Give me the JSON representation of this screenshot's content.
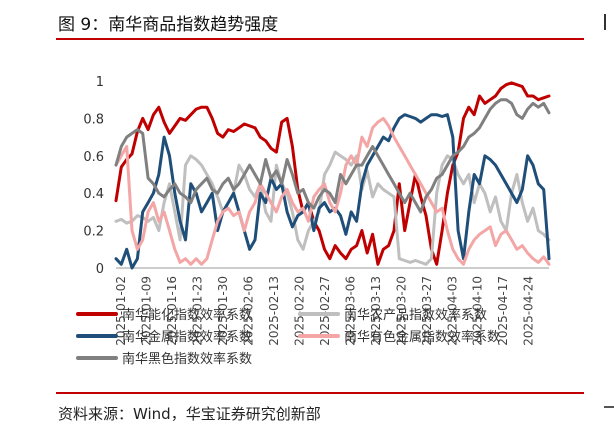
{
  "header": {
    "title": "图 9：南华商品指数趋势强度"
  },
  "footer": {
    "source": "资料来源：Wind，华宝证券研究创新部"
  },
  "chart_data": {
    "type": "line",
    "title": "图 9：南华商品指数趋势强度",
    "ylim": [
      0,
      1
    ],
    "yticks": [
      "0",
      "0.2",
      "0.4",
      "0.6",
      "0.8",
      "1"
    ],
    "grid": false,
    "legend_position": "bottom",
    "x_tick_labels": [
      "2025-01-02",
      "2025-01-09",
      "2025-01-16",
      "2025-01-23",
      "2025-01-30",
      "2025-02-06",
      "2025-02-13",
      "2025-02-20",
      "2025-02-27",
      "2025-03-06",
      "2025-03-13",
      "2025-03-20",
      "2025-03-27",
      "2025-04-03",
      "2025-04-10",
      "2025-04-17",
      "2025-04-24"
    ],
    "series": [
      {
        "name": "南华能化指数效率系数",
        "color": "#c00000",
        "values": [
          0.36,
          0.54,
          0.58,
          0.61,
          0.73,
          0.8,
          0.74,
          0.82,
          0.86,
          0.78,
          0.72,
          0.76,
          0.8,
          0.79,
          0.82,
          0.85,
          0.86,
          0.86,
          0.8,
          0.72,
          0.7,
          0.74,
          0.73,
          0.75,
          0.77,
          0.76,
          0.75,
          0.7,
          0.68,
          0.64,
          0.62,
          0.78,
          0.8,
          0.65,
          0.42,
          0.3,
          0.35,
          0.25,
          0.2,
          0.1,
          0.05,
          0.12,
          0.08,
          0.05,
          0.1,
          0.12,
          0.2,
          0.08,
          0.18,
          0.02,
          0.1,
          0.12,
          0.2,
          0.45,
          0.2,
          0.35,
          0.5,
          0.38,
          0.28,
          0.1,
          0.02,
          0.2,
          0.4,
          0.55,
          0.62,
          0.8,
          0.86,
          0.82,
          0.92,
          0.88,
          0.9,
          0.92,
          0.96,
          0.98,
          0.99,
          0.98,
          0.97,
          0.92,
          0.92,
          0.9,
          0.91,
          0.92
        ]
      },
      {
        "name": "南华农产品指数效率系数",
        "color": "#bfbfbf",
        "values": [
          0.25,
          0.26,
          0.24,
          0.25,
          0.28,
          0.27,
          0.25,
          0.27,
          0.2,
          0.35,
          0.45,
          0.3,
          0.15,
          0.55,
          0.6,
          0.58,
          0.55,
          0.5,
          0.45,
          0.38,
          0.3,
          0.35,
          0.4,
          0.55,
          0.5,
          0.42,
          0.38,
          0.45,
          0.3,
          0.25,
          0.55,
          0.45,
          0.4,
          0.3,
          0.15,
          0.1,
          0.2,
          0.25,
          0.3,
          0.5,
          0.55,
          0.62,
          0.6,
          0.58,
          0.55,
          0.6,
          0.42,
          0.52,
          0.38,
          0.45,
          0.42,
          0.4,
          0.38,
          0.05,
          0.04,
          0.03,
          0.04,
          0.03,
          0.02,
          0.05,
          0.4,
          0.55,
          0.6,
          0.58,
          0.5,
          0.45,
          0.5,
          0.35,
          0.45,
          0.4,
          0.3,
          0.38,
          0.25,
          0.2,
          0.4,
          0.5,
          0.35,
          0.25,
          0.32,
          0.2,
          0.18,
          0.15
        ]
      },
      {
        "name": "南华金属指数效率系数",
        "color": "#1f4e79",
        "values": [
          0.05,
          0.02,
          0.1,
          0.0,
          0.05,
          0.3,
          0.35,
          0.4,
          0.5,
          0.7,
          0.6,
          0.4,
          0.25,
          0.15,
          0.45,
          0.4,
          0.3,
          0.35,
          0.4,
          0.2,
          0.3,
          0.35,
          0.4,
          0.3,
          0.2,
          0.1,
          0.15,
          0.4,
          0.35,
          0.48,
          0.42,
          0.45,
          0.3,
          0.22,
          0.28,
          0.3,
          0.35,
          0.2,
          0.32,
          0.35,
          0.3,
          0.32,
          0.28,
          0.18,
          0.3,
          0.25,
          0.45,
          0.55,
          0.6,
          0.65,
          0.7,
          0.68,
          0.75,
          0.8,
          0.82,
          0.81,
          0.8,
          0.78,
          0.8,
          0.82,
          0.82,
          0.81,
          0.82,
          0.7,
          0.2,
          0.05,
          0.3,
          0.5,
          0.45,
          0.6,
          0.58,
          0.55,
          0.5,
          0.45,
          0.4,
          0.35,
          0.42,
          0.6,
          0.55,
          0.45,
          0.42,
          0.05
        ]
      },
      {
        "name": "南华有色金属指数效率系数",
        "color": "#f4a6a6",
        "values": [
          0.55,
          0.6,
          0.65,
          0.2,
          0.1,
          0.15,
          0.3,
          0.35,
          0.25,
          0.3,
          0.2,
          0.1,
          0.03,
          0.05,
          0.02,
          0.05,
          0.02,
          0.05,
          0.15,
          0.25,
          0.3,
          0.32,
          0.28,
          0.3,
          0.2,
          0.3,
          0.35,
          0.45,
          0.4,
          0.35,
          0.3,
          0.38,
          0.42,
          0.35,
          0.3,
          0.32,
          0.25,
          0.38,
          0.42,
          0.45,
          0.35,
          0.3,
          0.4,
          0.55,
          0.6,
          0.55,
          0.7,
          0.65,
          0.75,
          0.78,
          0.8,
          0.76,
          0.7,
          0.65,
          0.6,
          0.55,
          0.5,
          0.45,
          0.4,
          0.35,
          0.3,
          0.32,
          0.2,
          0.1,
          0.05,
          0.02,
          0.1,
          0.15,
          0.18,
          0.2,
          0.22,
          0.12,
          0.18,
          0.2,
          0.15,
          0.1,
          0.12,
          0.08,
          0.05,
          0.03,
          0.06,
          0.02
        ]
      },
      {
        "name": "南华黑色指数效率系数",
        "color": "#808080",
        "values": [
          0.55,
          0.65,
          0.7,
          0.72,
          0.74,
          0.72,
          0.48,
          0.45,
          0.4,
          0.38,
          0.42,
          0.45,
          0.4,
          0.38,
          0.35,
          0.42,
          0.45,
          0.48,
          0.42,
          0.4,
          0.45,
          0.48,
          0.42,
          0.45,
          0.5,
          0.55,
          0.5,
          0.45,
          0.58,
          0.48,
          0.52,
          0.45,
          0.58,
          0.5,
          0.4,
          0.42,
          0.35,
          0.32,
          0.38,
          0.42,
          0.4,
          0.35,
          0.5,
          0.45,
          0.5,
          0.55,
          0.55,
          0.6,
          0.65,
          0.6,
          0.55,
          0.5,
          0.45,
          0.4,
          0.35,
          0.4,
          0.35,
          0.3,
          0.38,
          0.42,
          0.48,
          0.5,
          0.55,
          0.6,
          0.62,
          0.65,
          0.7,
          0.72,
          0.75,
          0.8,
          0.85,
          0.88,
          0.9,
          0.9,
          0.88,
          0.82,
          0.8,
          0.85,
          0.88,
          0.86,
          0.88,
          0.83
        ]
      }
    ]
  }
}
